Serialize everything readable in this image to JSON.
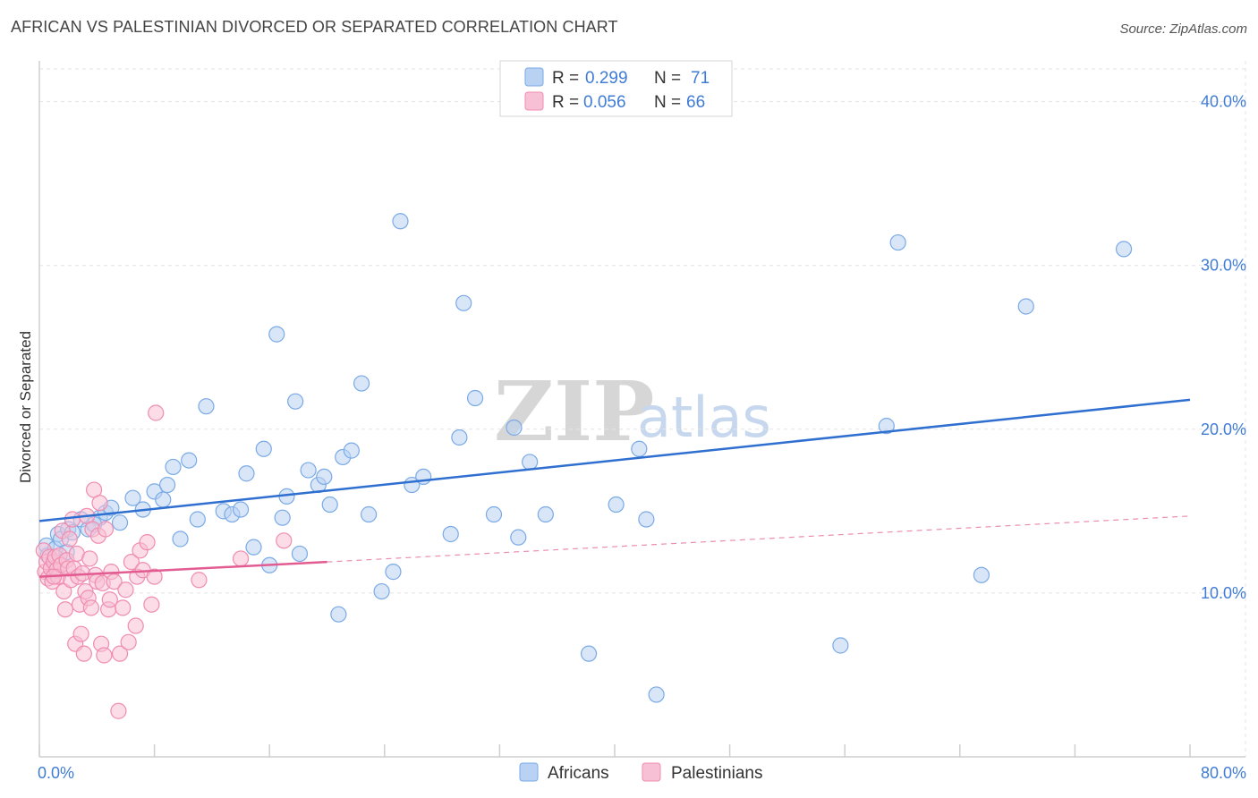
{
  "header": {
    "title": "AFRICAN VS PALESTINIAN DIVORCED OR SEPARATED CORRELATION CHART",
    "source": "Source: ZipAtlas.com"
  },
  "watermark": {
    "zip": "ZIP",
    "atlas": "atlas"
  },
  "chart_data": {
    "type": "scatter",
    "ylabel": "Divorced or Separated",
    "xlim": [
      0,
      80
    ],
    "ylim": [
      0,
      42
    ],
    "x_tick_labels": [
      {
        "value": 0,
        "label": "0.0%"
      },
      {
        "value": 80,
        "label": "80.0%"
      }
    ],
    "y_tick_labels": [
      {
        "value": 10,
        "label": "10.0%"
      },
      {
        "value": 20,
        "label": "20.0%"
      },
      {
        "value": 30,
        "label": "30.0%"
      },
      {
        "value": 40,
        "label": "40.0%"
      }
    ],
    "legend": [
      {
        "series": "Africans",
        "r_label": "R =",
        "r_value": "0.299",
        "n_label": "N =",
        "n_value": "71"
      },
      {
        "series": "Palestinians",
        "r_label": "R =",
        "r_value": "0.056",
        "n_label": "N =",
        "n_value": "66"
      }
    ],
    "series": [
      {
        "name": "Africans",
        "color": "#7aaae6",
        "fill": "#b9d2f3",
        "trend": {
          "x0": 0,
          "y0": 14.4,
          "x1": 80,
          "y1": 21.8,
          "color": "#2f6fd0"
        },
        "points": [
          [
            0.5,
            12.9
          ],
          [
            0.6,
            12.3
          ],
          [
            1.1,
            12.7
          ],
          [
            1.3,
            13.6
          ],
          [
            1.5,
            13.3
          ],
          [
            2.0,
            13.9
          ],
          [
            2.3,
            13.7
          ],
          [
            2.9,
            14.5
          ],
          [
            3.4,
            13.9
          ],
          [
            4.2,
            14.6
          ],
          [
            4.6,
            14.9
          ],
          [
            5.0,
            15.2
          ],
          [
            5.6,
            14.3
          ],
          [
            6.5,
            15.8
          ],
          [
            7.2,
            15.1
          ],
          [
            8.0,
            16.2
          ],
          [
            8.6,
            15.7
          ],
          [
            8.9,
            16.6
          ],
          [
            9.3,
            17.7
          ],
          [
            10.4,
            18.1
          ],
          [
            11.6,
            21.4
          ],
          [
            9.8,
            13.3
          ],
          [
            11.0,
            14.5
          ],
          [
            12.8,
            15.0
          ],
          [
            13.4,
            14.8
          ],
          [
            14.0,
            15.1
          ],
          [
            14.4,
            17.3
          ],
          [
            14.9,
            12.8
          ],
          [
            15.6,
            18.8
          ],
          [
            16.0,
            11.7
          ],
          [
            16.5,
            25.8
          ],
          [
            16.9,
            14.6
          ],
          [
            17.2,
            15.9
          ],
          [
            17.8,
            21.7
          ],
          [
            18.1,
            12.4
          ],
          [
            18.7,
            17.5
          ],
          [
            19.4,
            16.6
          ],
          [
            19.8,
            17.1
          ],
          [
            20.2,
            15.4
          ],
          [
            21.1,
            18.3
          ],
          [
            21.7,
            18.7
          ],
          [
            22.4,
            22.8
          ],
          [
            22.9,
            14.8
          ],
          [
            23.8,
            10.1
          ],
          [
            24.6,
            11.3
          ],
          [
            25.1,
            32.7
          ],
          [
            25.9,
            16.6
          ],
          [
            26.7,
            17.1
          ],
          [
            28.6,
            13.6
          ],
          [
            29.2,
            19.5
          ],
          [
            29.5,
            27.7
          ],
          [
            30.3,
            21.9
          ],
          [
            31.6,
            14.8
          ],
          [
            33.0,
            20.1
          ],
          [
            33.3,
            13.4
          ],
          [
            34.1,
            18.0
          ],
          [
            35.2,
            14.8
          ],
          [
            38.2,
            6.3
          ],
          [
            40.1,
            15.4
          ],
          [
            41.7,
            18.8
          ],
          [
            42.2,
            14.5
          ],
          [
            42.9,
            3.8
          ],
          [
            20.8,
            8.7
          ],
          [
            55.7,
            6.8
          ],
          [
            58.9,
            20.2
          ],
          [
            59.7,
            31.4
          ],
          [
            65.5,
            11.1
          ],
          [
            68.6,
            27.5
          ],
          [
            75.4,
            31.0
          ],
          [
            1.9,
            12.5
          ],
          [
            3.8,
            14.2
          ]
        ]
      },
      {
        "name": "Palestinians",
        "color": "#f08cb0",
        "fill": "#f7c0d4",
        "trend": {
          "x0": 0,
          "y0": 11.0,
          "x1": 20,
          "y1": 11.9,
          "color": "#e25c92"
        },
        "trend_extension": {
          "x0": 20,
          "y0": 11.9,
          "x1": 80,
          "y1": 14.7
        },
        "points": [
          [
            0.3,
            12.6
          ],
          [
            0.4,
            11.3
          ],
          [
            0.5,
            11.9
          ],
          [
            0.6,
            10.9
          ],
          [
            0.7,
            12.2
          ],
          [
            0.8,
            11.5
          ],
          [
            0.9,
            10.7
          ],
          [
            1.0,
            11.9
          ],
          [
            1.1,
            12.2
          ],
          [
            1.2,
            11.4
          ],
          [
            1.3,
            11.0
          ],
          [
            1.4,
            12.3
          ],
          [
            1.5,
            11.7
          ],
          [
            1.6,
            13.8
          ],
          [
            1.7,
            10.1
          ],
          [
            1.8,
            9.0
          ],
          [
            1.9,
            12.0
          ],
          [
            2.0,
            11.5
          ],
          [
            2.1,
            13.3
          ],
          [
            2.2,
            10.8
          ],
          [
            2.3,
            14.5
          ],
          [
            2.4,
            11.5
          ],
          [
            2.5,
            6.9
          ],
          [
            2.6,
            12.4
          ],
          [
            2.7,
            11.0
          ],
          [
            2.8,
            9.3
          ],
          [
            2.9,
            7.5
          ],
          [
            3.0,
            11.2
          ],
          [
            3.1,
            6.3
          ],
          [
            3.2,
            10.1
          ],
          [
            3.3,
            14.7
          ],
          [
            3.4,
            9.7
          ],
          [
            3.5,
            12.1
          ],
          [
            3.6,
            9.1
          ],
          [
            3.7,
            13.9
          ],
          [
            3.8,
            16.3
          ],
          [
            3.9,
            11.1
          ],
          [
            4.0,
            10.7
          ],
          [
            4.1,
            13.5
          ],
          [
            4.2,
            15.5
          ],
          [
            4.3,
            6.9
          ],
          [
            4.4,
            10.6
          ],
          [
            4.5,
            6.2
          ],
          [
            4.6,
            13.9
          ],
          [
            4.8,
            9.0
          ],
          [
            4.9,
            9.6
          ],
          [
            5.0,
            11.3
          ],
          [
            5.2,
            10.7
          ],
          [
            5.5,
            2.8
          ],
          [
            5.6,
            6.3
          ],
          [
            5.8,
            9.1
          ],
          [
            6.0,
            10.2
          ],
          [
            6.2,
            7.0
          ],
          [
            6.4,
            11.9
          ],
          [
            6.7,
            8.0
          ],
          [
            6.8,
            11.0
          ],
          [
            7.0,
            12.6
          ],
          [
            7.2,
            11.4
          ],
          [
            7.5,
            13.1
          ],
          [
            7.8,
            9.3
          ],
          [
            8.0,
            11.0
          ],
          [
            8.1,
            21.0
          ],
          [
            11.1,
            10.8
          ],
          [
            14.0,
            12.1
          ],
          [
            17.0,
            13.2
          ],
          [
            1.0,
            11.0
          ]
        ]
      }
    ]
  }
}
